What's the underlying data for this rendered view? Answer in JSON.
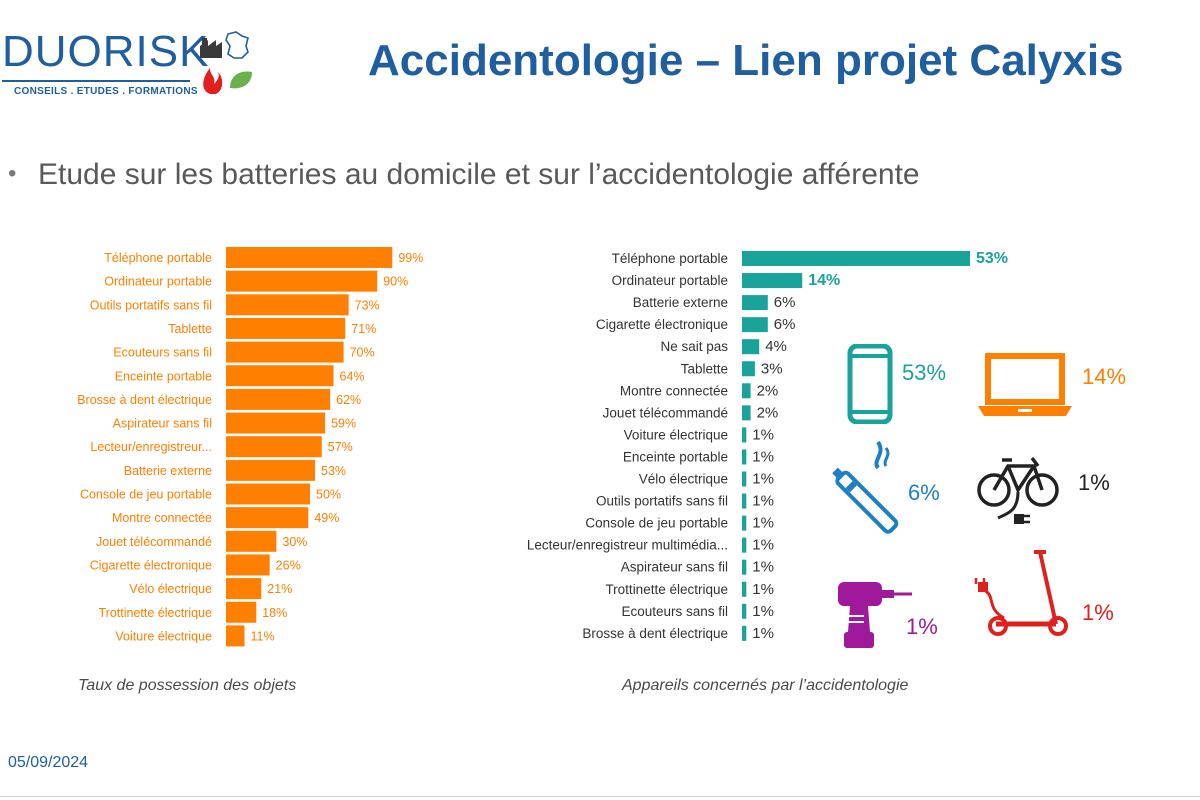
{
  "logo": {
    "brand_duo": "DUO",
    "brand_risk": "RISK",
    "tagline": "CONSEILS . ETUDES . FORMATIONS"
  },
  "title": "Accidentologie – Lien projet Calyxis",
  "bullet": "Etude sur les batteries au domicile et sur l’accidentologie afférente",
  "colors": {
    "brand_blue": "#1f5fa0",
    "orange": "#ff7f00",
    "teal": "#19a39b",
    "purple": "#a0199b",
    "red": "#e0201c",
    "ecig_blue": "#1d7fc4"
  },
  "chart_data": [
    {
      "type": "bar",
      "orientation": "horizontal",
      "caption": "Taux de possession des objets",
      "categories": [
        "Téléphone portable",
        "Ordinateur portable",
        "Outils portatifs sans fil",
        "Tablette",
        "Ecouteurs sans fil",
        "Enceinte portable",
        "Brosse à dent électrique",
        "Aspirateur sans fil",
        "Lecteur/enregistreur...",
        "Batterie externe",
        "Console de jeu portable",
        "Montre connectée",
        "Jouet télécommandé",
        "Cigarette électronique",
        "Vélo électrique",
        "Trottinette électrique",
        "Voiture électrique"
      ],
      "values": [
        99,
        90,
        73,
        71,
        70,
        64,
        62,
        59,
        57,
        53,
        50,
        49,
        30,
        26,
        21,
        18,
        11
      ],
      "labels": [
        "99%",
        "90%",
        "73%",
        "71%",
        "70%",
        "64%",
        "62%",
        "59%",
        "57%",
        "53%",
        "50%",
        "49%",
        "30%",
        "26%",
        "21%",
        "18%",
        "11%"
      ],
      "xlim": [
        0,
        100
      ],
      "color": "#ff7f00"
    },
    {
      "type": "bar",
      "orientation": "horizontal",
      "caption": "Appareils concernés par l’accidentologie",
      "categories": [
        "Téléphone portable",
        "Ordinateur portable",
        "Batterie externe",
        "Cigarette électronique",
        "Ne sait pas",
        "Tablette",
        "Montre connectée",
        "Jouet télécommandé",
        "Voiture électrique",
        "Enceinte portable",
        "Vélo électrique",
        "Outils portatifs sans fil",
        "Console de jeu portable",
        "Lecteur/enregistreur multimédia...",
        "Aspirateur sans fil",
        "Trottinette électrique",
        "Ecouteurs sans fil",
        "Brosse à dent électrique"
      ],
      "values": [
        53,
        14,
        6,
        6,
        4,
        3,
        2,
        2,
        1,
        1,
        1,
        1,
        1,
        1,
        1,
        1,
        1,
        1
      ],
      "labels": [
        "53%",
        "14%",
        "6%",
        "6%",
        "4%",
        "3%",
        "2%",
        "2%",
        "1%",
        "1%",
        "1%",
        "1%",
        "1%",
        "1%",
        "1%",
        "1%",
        "1%",
        "1%"
      ],
      "xlim": [
        0,
        53
      ],
      "color": "#19a39b"
    }
  ],
  "pictograms": [
    {
      "icon": "smartphone-icon",
      "value": "53%",
      "color": "#19a39b"
    },
    {
      "icon": "laptop-icon",
      "value": "14%",
      "color": "#ff7f00"
    },
    {
      "icon": "e-cigarette-icon",
      "value": "6%",
      "color": "#1d7fc4"
    },
    {
      "icon": "e-bike-icon",
      "value": "1%",
      "color": "#222222"
    },
    {
      "icon": "cordless-drill-icon",
      "value": "1%",
      "color": "#a0199b"
    },
    {
      "icon": "e-scooter-icon",
      "value": "1%",
      "color": "#e0201c"
    }
  ],
  "footer": {
    "date": "05/09/2024"
  }
}
